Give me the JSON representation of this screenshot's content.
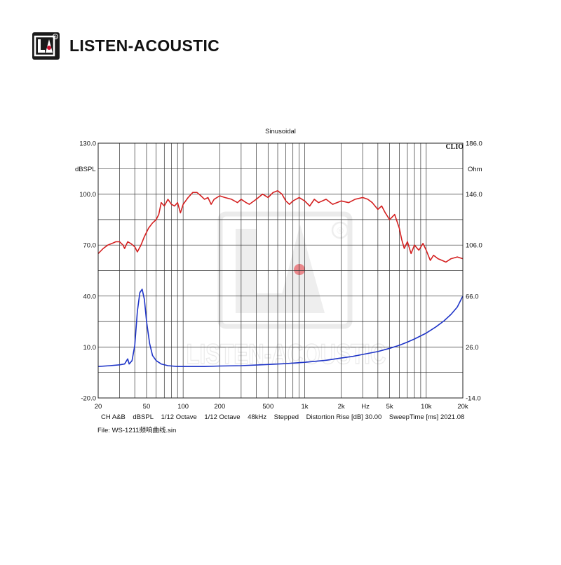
{
  "brand": {
    "name": "LISTEN-ACOUSTIC",
    "logo_text": "LA",
    "registered_mark": "®",
    "accent_color": "#c8102e"
  },
  "chart_data": {
    "type": "line",
    "title": "Sinusoidal",
    "vendor_mark": "CLIO",
    "x_scale": "log",
    "xlim": [
      20,
      20000
    ],
    "x_ticks": [
      {
        "value": 20,
        "label": "20"
      },
      {
        "value": 50,
        "label": "50"
      },
      {
        "value": 100,
        "label": "100"
      },
      {
        "value": 200,
        "label": "200"
      },
      {
        "value": 500,
        "label": "500"
      },
      {
        "value": 1000,
        "label": "1k"
      },
      {
        "value": 2000,
        "label": "2k"
      },
      {
        "value": 3160,
        "label": "Hz"
      },
      {
        "value": 5000,
        "label": "5k"
      },
      {
        "value": 10000,
        "label": "10k"
      },
      {
        "value": 20000,
        "label": "20k"
      }
    ],
    "left_axis": {
      "unit": "dBSPL",
      "ylim": [
        -20,
        130
      ],
      "ticks": [
        {
          "value": 130,
          "label": "130.0"
        },
        {
          "value": 100,
          "label": "100.0"
        },
        {
          "value": 70,
          "label": "70.0"
        },
        {
          "value": 40,
          "label": "40.0"
        },
        {
          "value": 10,
          "label": "10.0"
        },
        {
          "value": -20,
          "label": "-20.0"
        }
      ]
    },
    "right_axis": {
      "unit": "Ohm",
      "ylim": [
        -14,
        186
      ],
      "ticks": [
        {
          "value": 186,
          "label": "186.0"
        },
        {
          "value": 146,
          "label": "146.0"
        },
        {
          "value": 106,
          "label": "106.0"
        },
        {
          "value": 66,
          "label": "66.0"
        },
        {
          "value": 26,
          "label": "26.0"
        },
        {
          "value": -14,
          "label": "-14.0"
        }
      ]
    },
    "grid": true,
    "series": [
      {
        "axis": "left",
        "color": "#d42020",
        "points": [
          [
            20,
            65
          ],
          [
            22,
            68
          ],
          [
            24,
            70
          ],
          [
            26,
            71
          ],
          [
            28,
            72
          ],
          [
            30,
            72
          ],
          [
            32,
            70
          ],
          [
            33,
            68
          ],
          [
            35,
            72
          ],
          [
            37,
            71
          ],
          [
            40,
            69
          ],
          [
            42,
            66
          ],
          [
            45,
            70
          ],
          [
            48,
            75
          ],
          [
            52,
            80
          ],
          [
            56,
            83
          ],
          [
            60,
            85
          ],
          [
            63,
            88
          ],
          [
            66,
            95
          ],
          [
            70,
            93
          ],
          [
            75,
            97
          ],
          [
            80,
            94
          ],
          [
            85,
            93
          ],
          [
            90,
            95
          ],
          [
            95,
            89
          ],
          [
            100,
            94
          ],
          [
            110,
            98
          ],
          [
            120,
            101
          ],
          [
            130,
            101
          ],
          [
            140,
            99
          ],
          [
            150,
            97
          ],
          [
            160,
            98
          ],
          [
            170,
            94
          ],
          [
            180,
            97
          ],
          [
            200,
            99
          ],
          [
            220,
            98
          ],
          [
            250,
            97
          ],
          [
            280,
            95
          ],
          [
            300,
            97
          ],
          [
            330,
            95
          ],
          [
            350,
            94
          ],
          [
            400,
            97
          ],
          [
            450,
            100
          ],
          [
            500,
            98
          ],
          [
            550,
            101
          ],
          [
            600,
            102
          ],
          [
            650,
            100
          ],
          [
            700,
            96
          ],
          [
            750,
            94
          ],
          [
            800,
            96
          ],
          [
            900,
            98
          ],
          [
            1000,
            96
          ],
          [
            1100,
            93
          ],
          [
            1200,
            97
          ],
          [
            1300,
            95
          ],
          [
            1500,
            97
          ],
          [
            1700,
            94
          ],
          [
            2000,
            96
          ],
          [
            2300,
            95
          ],
          [
            2600,
            97
          ],
          [
            3000,
            98
          ],
          [
            3300,
            97
          ],
          [
            3600,
            95
          ],
          [
            4000,
            91
          ],
          [
            4300,
            93
          ],
          [
            4600,
            89
          ],
          [
            5000,
            85
          ],
          [
            5500,
            88
          ],
          [
            6000,
            80
          ],
          [
            6300,
            73
          ],
          [
            6600,
            68
          ],
          [
            7000,
            72
          ],
          [
            7500,
            65
          ],
          [
            8000,
            70
          ],
          [
            8700,
            67
          ],
          [
            9400,
            71
          ],
          [
            10000,
            67
          ],
          [
            10800,
            61
          ],
          [
            11500,
            64
          ],
          [
            12500,
            62
          ],
          [
            13500,
            61
          ],
          [
            14500,
            60
          ],
          [
            16000,
            62
          ],
          [
            18000,
            63
          ],
          [
            20000,
            62
          ]
        ]
      },
      {
        "axis": "left",
        "color": "#1f35c8",
        "points": [
          [
            20,
            -1.5
          ],
          [
            25,
            -1
          ],
          [
            30,
            -0.5
          ],
          [
            33,
            0
          ],
          [
            35,
            3
          ],
          [
            36,
            0
          ],
          [
            38,
            2
          ],
          [
            40,
            11
          ],
          [
            42,
            31
          ],
          [
            44,
            42
          ],
          [
            46,
            44
          ],
          [
            48,
            38
          ],
          [
            50,
            25
          ],
          [
            53,
            12
          ],
          [
            56,
            5
          ],
          [
            60,
            2
          ],
          [
            66,
            0
          ],
          [
            75,
            -1
          ],
          [
            90,
            -1.5
          ],
          [
            120,
            -1.5
          ],
          [
            150,
            -1.5
          ],
          [
            200,
            -1.2
          ],
          [
            300,
            -1
          ],
          [
            400,
            -0.6
          ],
          [
            500,
            -0.3
          ],
          [
            700,
            0.2
          ],
          [
            1000,
            1
          ],
          [
            1500,
            2.2
          ],
          [
            2000,
            3.5
          ],
          [
            2500,
            4.5
          ],
          [
            3000,
            5.6
          ],
          [
            4000,
            7.3
          ],
          [
            5000,
            9.2
          ],
          [
            6000,
            11
          ],
          [
            7000,
            12.9
          ],
          [
            8000,
            14.7
          ],
          [
            10000,
            18.2
          ],
          [
            12000,
            21.8
          ],
          [
            14000,
            25.4
          ],
          [
            16000,
            29.2
          ],
          [
            18000,
            33.5
          ],
          [
            20000,
            40
          ]
        ]
      }
    ],
    "footer": {
      "line1": [
        "CH A&B",
        "dBSPL",
        "1/12 Octave",
        "1/12 Octave",
        "48kHz",
        "Stepped",
        "Distortion Rise [dB] 30.00",
        "SweepTime [ms] 2021.08"
      ],
      "line2": "File: WS-1211频响曲线.sin"
    }
  },
  "watermark": {
    "logo_text": "LA",
    "registered_mark": "®",
    "name": "LISTEN-ACOUSTIC"
  }
}
